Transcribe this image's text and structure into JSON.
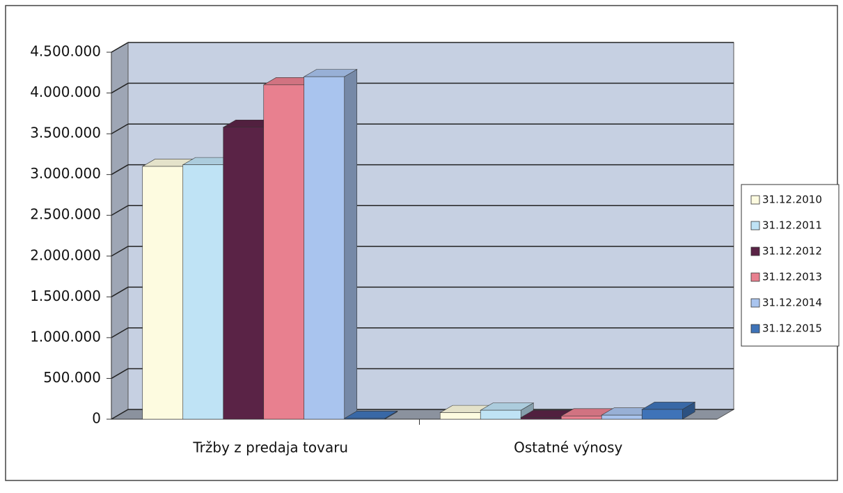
{
  "chart_data": {
    "type": "bar3d",
    "categories": [
      "Tržby z predaja tovaru",
      "Ostatné výnosy"
    ],
    "series": [
      {
        "name": "31.12.2010",
        "color": "#fdfbe0",
        "values": [
          3100000,
          80000
        ]
      },
      {
        "name": "31.12.2011",
        "color": "#bfe3f5",
        "values": [
          3120000,
          110000
        ]
      },
      {
        "name": "31.12.2012",
        "color": "#5a2346",
        "values": [
          3580000,
          20000
        ]
      },
      {
        "name": "31.12.2013",
        "color": "#e8808f",
        "values": [
          4100000,
          40000
        ]
      },
      {
        "name": "31.12.2014",
        "color": "#a9c4ee",
        "values": [
          4200000,
          50000
        ]
      },
      {
        "name": "31.12.2015",
        "color": "#3f73b8",
        "values": [
          10000,
          120000
        ]
      }
    ],
    "ylim": [
      0,
      4500000
    ],
    "yticks": [
      0,
      {
        "value": 500000,
        "label": "500.000"
      },
      {
        "value": 1000000,
        "label": "1.000.000"
      },
      {
        "value": 1500000,
        "label": "1.500.000"
      },
      {
        "value": 2000000,
        "label": "2.000.000"
      },
      {
        "value": 2500000,
        "label": "2.500.000"
      },
      {
        "value": 3000000,
        "label": "3.000.000"
      },
      {
        "value": 3500000,
        "label": "3.500.000"
      },
      {
        "value": 4000000,
        "label": "4.000.000"
      },
      {
        "value": 4500000,
        "label": "4.500.000"
      }
    ],
    "grid": true,
    "legend": "right",
    "wall_color": "#c6d0e2"
  }
}
